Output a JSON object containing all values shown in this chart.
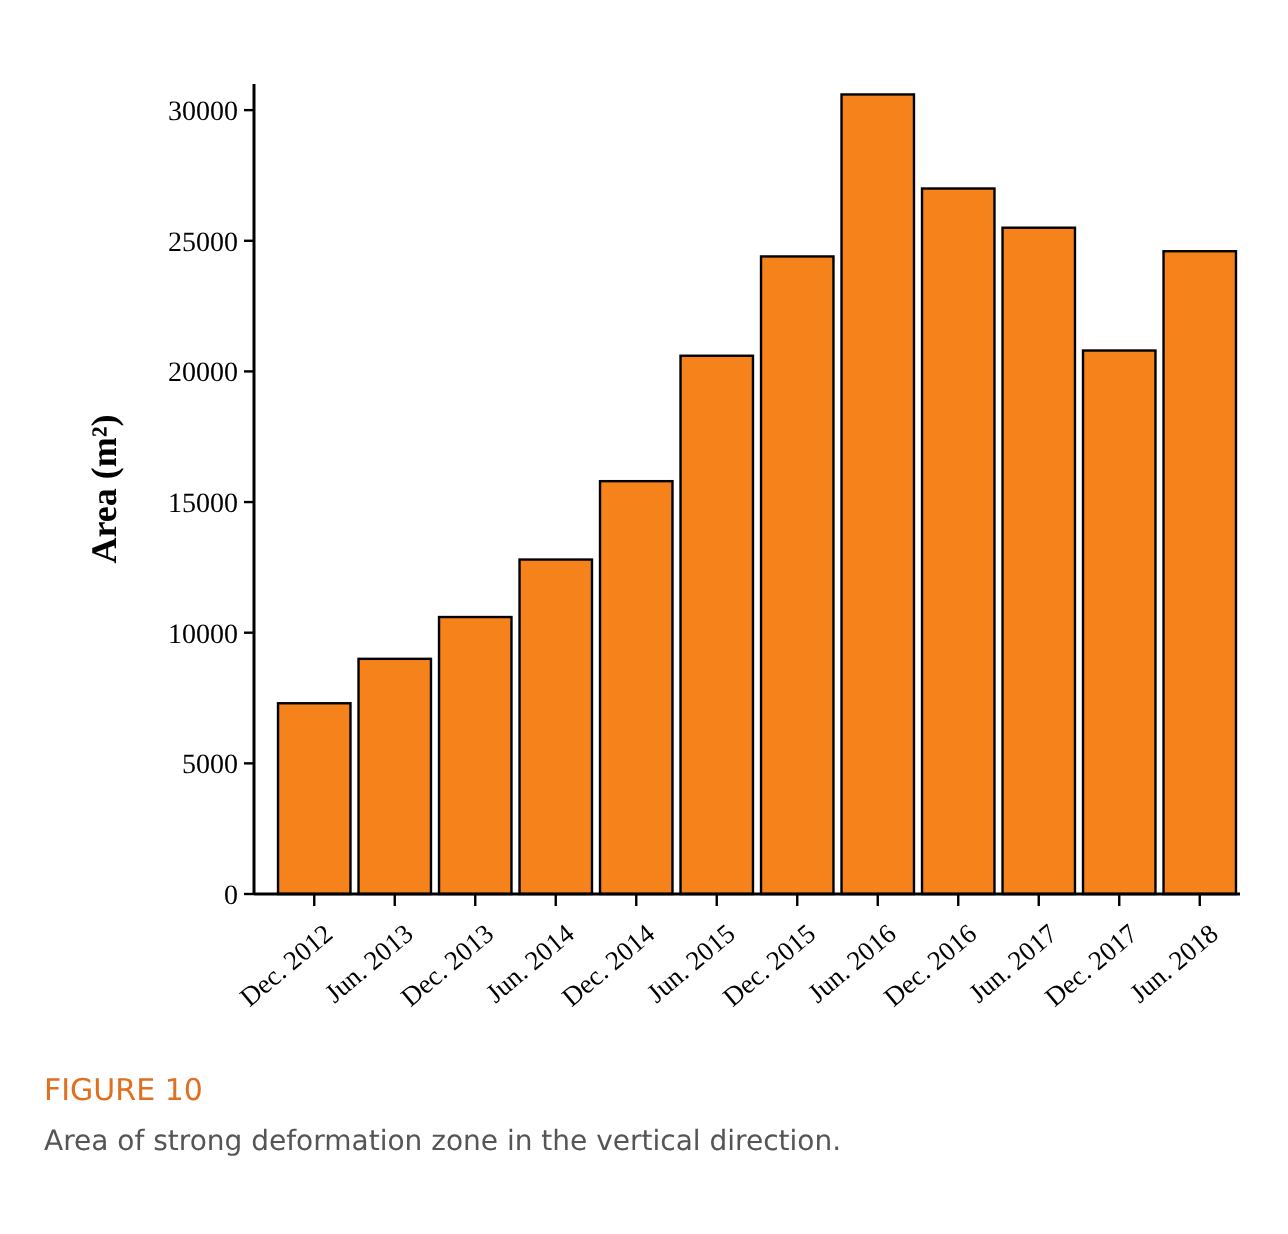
{
  "chart_data": {
    "type": "bar",
    "title": "FIGURE 10",
    "annotations": [
      "Area of strong deformation zone in the vertical direction."
    ],
    "ylabel": "Area (m²)",
    "categories": [
      "Dec. 2012",
      "Jun. 2013",
      "Dec. 2013",
      "Jun. 2014",
      "Dec. 2014",
      "Jun. 2015",
      "Dec. 2015",
      "Jun. 2016",
      "Dec. 2016",
      "Jun. 2017",
      "Dec. 2017",
      "Jun. 2018"
    ],
    "values": [
      7300,
      9000,
      10600,
      12800,
      15800,
      20600,
      24400,
      30600,
      27000,
      25500,
      20800,
      24600
    ],
    "color": "#f5821a",
    "ylim": [
      0,
      31000
    ],
    "yticks": [
      0,
      5000,
      10000,
      15000,
      20000,
      25000,
      30000
    ],
    "grid": false
  }
}
